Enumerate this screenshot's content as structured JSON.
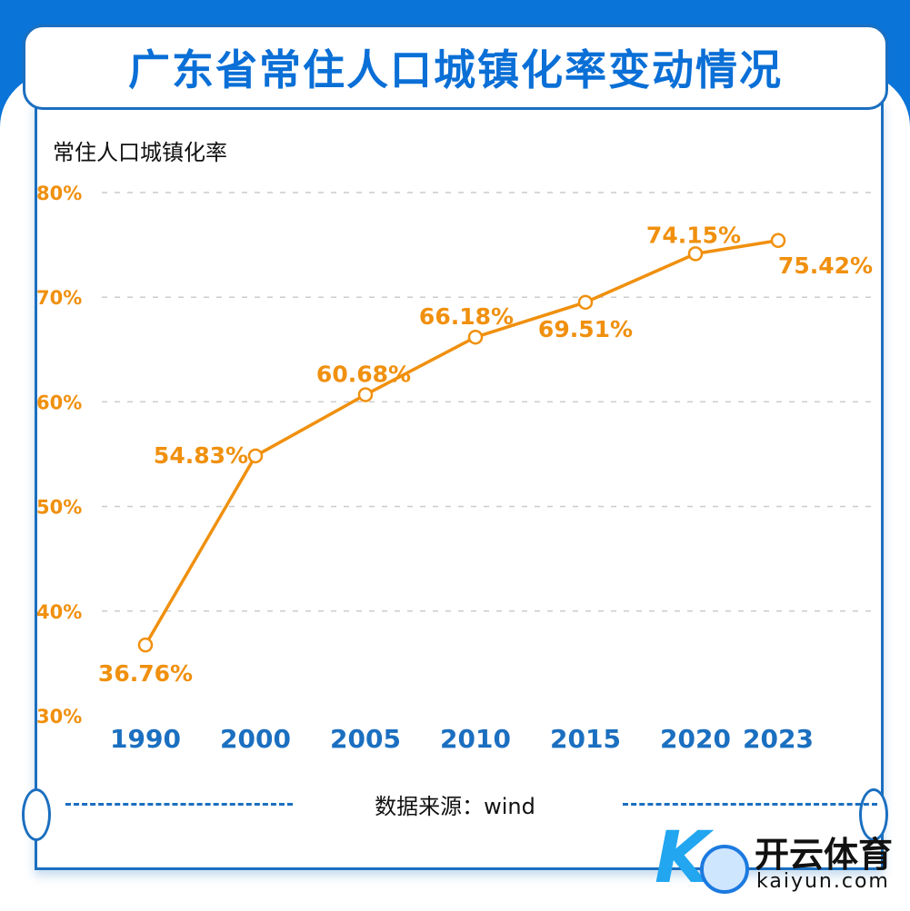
{
  "title": "广东省常住人口城镇化率变动情况",
  "source": "数据来源：wind",
  "logo": {
    "cn": "开云体育",
    "en": "kaiyun.com"
  },
  "colors": {
    "line": "#f0900e",
    "axis_x": "#1b6fc0",
    "brand": "#0a74d8"
  },
  "chart_data": {
    "type": "line",
    "title": "广东省常住人口城镇化率变动情况",
    "ylabel": "常住人口城镇化率",
    "xlabel": "",
    "categories": [
      "1990",
      "2000",
      "2005",
      "2010",
      "2015",
      "2020",
      "2023"
    ],
    "x": [
      1990,
      2000,
      2005,
      2010,
      2015,
      2020,
      2023
    ],
    "values": [
      36.76,
      54.83,
      60.68,
      66.18,
      69.51,
      74.15,
      75.42
    ],
    "data_labels": [
      "36.76%",
      "54.83%",
      "60.68%",
      "66.18%",
      "69.51%",
      "74.15%",
      "75.42%"
    ],
    "yticks": [
      "30%",
      "40%",
      "50%",
      "60%",
      "70%",
      "80%"
    ],
    "ylim": [
      30,
      80
    ],
    "grid": true
  }
}
